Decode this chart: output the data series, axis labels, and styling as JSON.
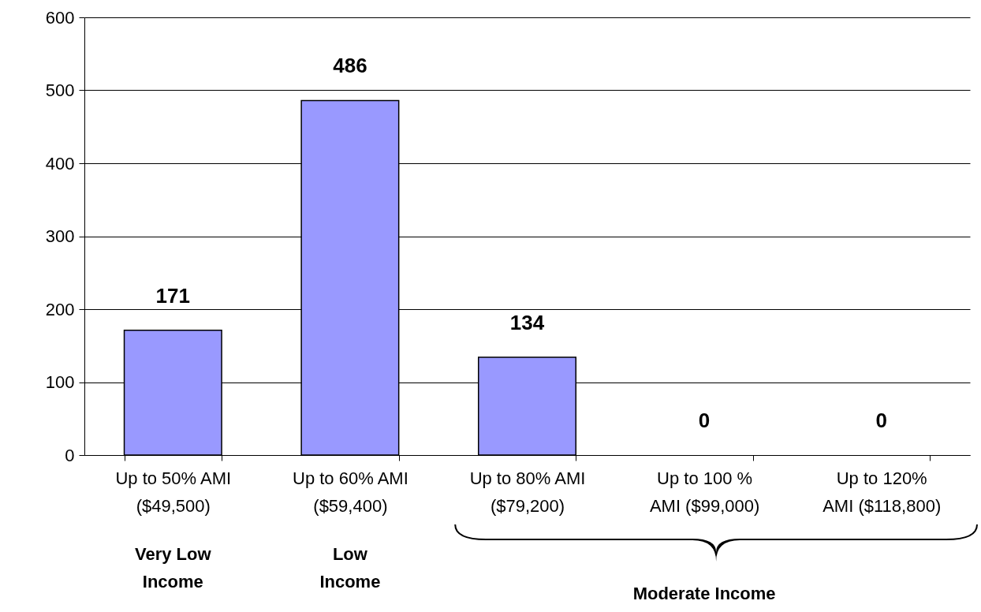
{
  "chart_data": {
    "type": "bar",
    "categories": [
      "Up to 50% AMI\n($49,500)",
      "Up to 60% AMI\n($59,400)",
      "Up to 80% AMI\n($79,200)",
      "Up to 100 %\nAMI ($99,000)",
      "Up to 120%\nAMI ($118,800)"
    ],
    "values": [
      171,
      486,
      134,
      0,
      0
    ],
    "color": "#9999ff",
    "ylim": [
      0,
      600
    ],
    "yticks": [
      0,
      100,
      200,
      300,
      400,
      500,
      600
    ],
    "grid": "y",
    "data_labels": true,
    "annotations": [
      "Very Low\nIncome",
      "Low\nIncome",
      "Moderate Income"
    ]
  }
}
